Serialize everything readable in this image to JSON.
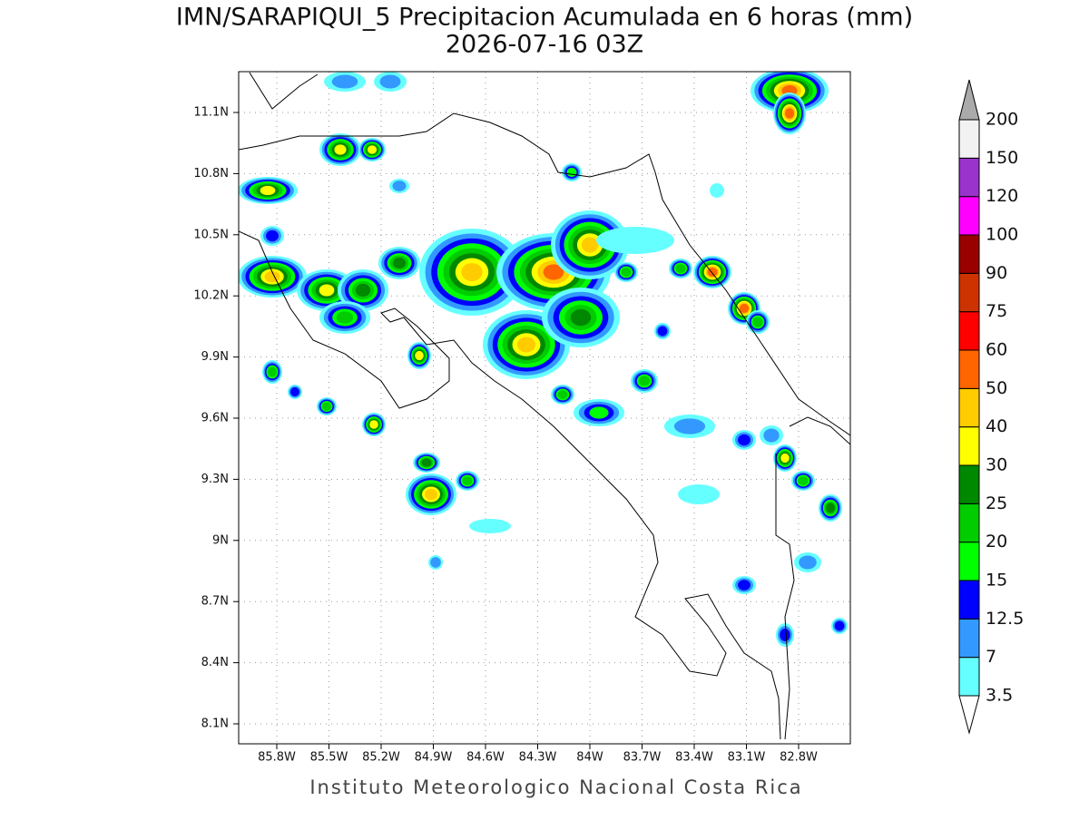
{
  "title": "IMN/SARAPIQUI_5 Precipitacion Acumulada en 6 horas (mm)",
  "subtitle": "2026-07-16 03Z",
  "map": {
    "lat_labels": [
      "11.1N",
      "10.8N",
      "10.5N",
      "10.2N",
      "9.9N",
      "9.6N",
      "9.3N",
      "9N",
      "8.7N",
      "8.4N",
      "8.1N"
    ],
    "lon_labels": [
      "85.8W",
      "85.5W",
      "85.2W",
      "84.9W",
      "84.6W",
      "84.3W",
      "84W",
      "83.7W",
      "83.4W",
      "83.1W",
      "82.8W"
    ]
  },
  "colorbar": {
    "levels": [
      "3.5",
      "7",
      "12.5",
      "15",
      "20",
      "25",
      "30",
      "40",
      "50",
      "60",
      "75",
      "90",
      "100",
      "120",
      "150",
      "200"
    ],
    "colors": [
      "#66ffff",
      "#3399ff",
      "#0000ff",
      "#00ff00",
      "#00cc00",
      "#008800",
      "#ffff00",
      "#ffcc00",
      "#ff6600",
      "#ff0000",
      "#cc3300",
      "#990000",
      "#ff00ff",
      "#9933cc",
      "#f2f2f2"
    ],
    "below_color": "#ffffff",
    "above_color": "#aaaaaa"
  },
  "footer": "Instituto Meteorologico Nacional Costa Rica"
}
